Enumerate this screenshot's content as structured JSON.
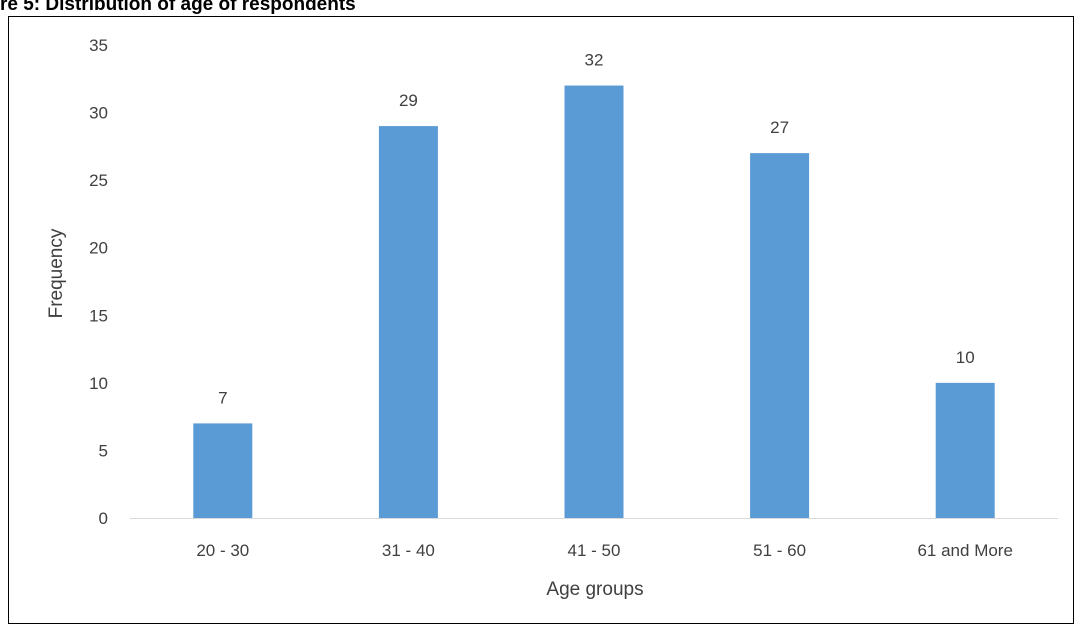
{
  "figure": {
    "title": "re 5: Distribution of age of respondents"
  },
  "chart_data": {
    "type": "bar",
    "categories": [
      "20 - 30",
      "31 - 40",
      "41 - 50",
      "51 - 60",
      "61 and More"
    ],
    "values": [
      7,
      29,
      32,
      27,
      10
    ],
    "data_labels": [
      "7",
      "29",
      "32",
      "27",
      "10"
    ],
    "xlabel": "Age groups",
    "ylabel": "Frequency",
    "ylim": [
      0,
      35
    ],
    "yticks": [
      0,
      5,
      10,
      15,
      20,
      25,
      30,
      35
    ],
    "ytick_labels": [
      "0",
      "5",
      "10",
      "15",
      "20",
      "25",
      "30",
      "35"
    ],
    "bar_color": "#5B9BD5",
    "grid": false,
    "legend": "none"
  }
}
